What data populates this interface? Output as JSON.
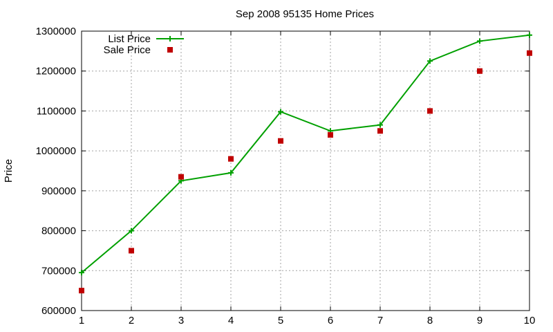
{
  "chart_data": {
    "type": "line",
    "title": "Sep 2008 95135 Home Prices",
    "xlabel": "",
    "ylabel": "Price",
    "xlim": [
      1,
      10
    ],
    "ylim": [
      600000,
      1300000
    ],
    "x_ticks": [
      1,
      2,
      3,
      4,
      5,
      6,
      7,
      8,
      9,
      10
    ],
    "y_ticks": [
      600000,
      700000,
      800000,
      900000,
      1000000,
      1100000,
      1200000,
      1300000
    ],
    "grid": true,
    "legend_position": "top-left",
    "series": [
      {
        "name": "List Price",
        "style": "line-with-plus-markers",
        "color": "#00a000",
        "x": [
          1,
          2,
          3,
          4,
          5,
          6,
          7,
          8,
          9,
          10
        ],
        "y": [
          695000,
          800000,
          925000,
          945000,
          1098000,
          1050000,
          1065000,
          1225000,
          1275000,
          1290000
        ]
      },
      {
        "name": "Sale Price",
        "style": "square-markers",
        "color": "#c00000",
        "x": [
          1,
          2,
          3,
          4,
          5,
          6,
          7,
          8,
          9,
          10
        ],
        "y": [
          650000,
          750000,
          935000,
          980000,
          1025000,
          1040000,
          1050000,
          1100000,
          1200000,
          1245000
        ]
      }
    ]
  }
}
